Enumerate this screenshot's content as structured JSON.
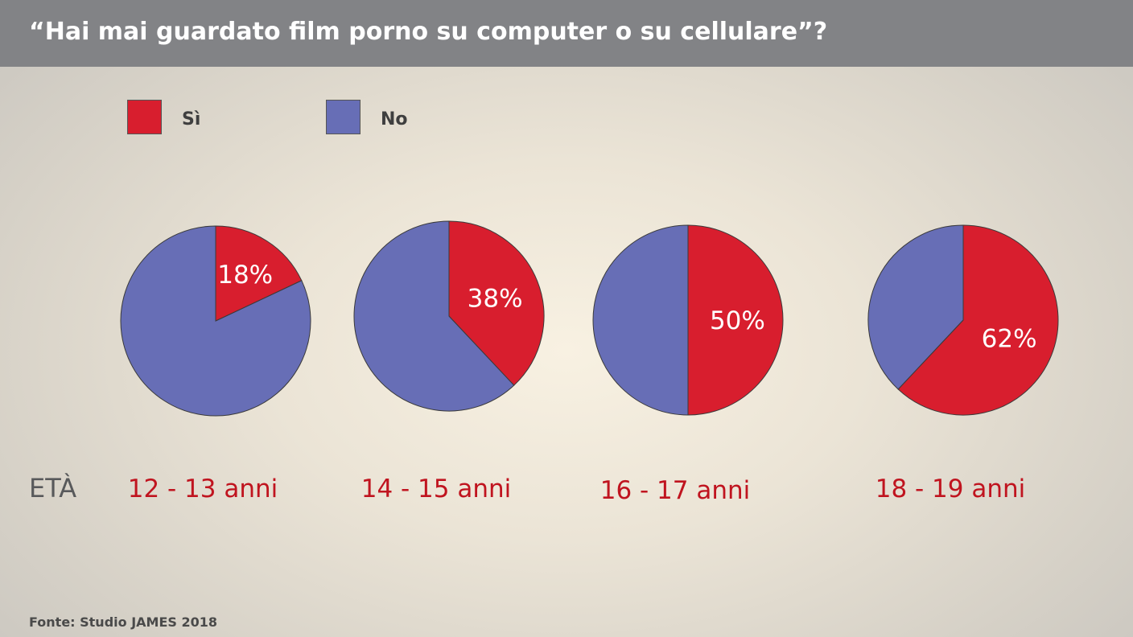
{
  "title": "“Hai mai guardato film porno su computer o su cellulare”?",
  "legend": [
    {
      "label": "Sì",
      "color": "#d81e2e"
    },
    {
      "label": "No",
      "color": "#676eb6"
    }
  ],
  "axis_label": "ETÀ",
  "source": "Fonte: Studio JAMES 2018",
  "chart_data": {
    "type": "pie",
    "title": "“Hai mai guardato film porno su computer o su cellulare”?",
    "categories": [
      "12 - 13 anni",
      "14 - 15 anni",
      "16 - 17 anni",
      "18 - 19 anni"
    ],
    "series": [
      {
        "name": "Sì",
        "values": [
          18,
          38,
          50,
          62
        ],
        "color": "#d81e2e"
      },
      {
        "name": "No",
        "values": [
          82,
          62,
          50,
          38
        ],
        "color": "#676eb6"
      }
    ],
    "data_labels": [
      "18%",
      "38%",
      "50%",
      "62%"
    ],
    "xlabel": "ETÀ",
    "legend": "top-left"
  }
}
